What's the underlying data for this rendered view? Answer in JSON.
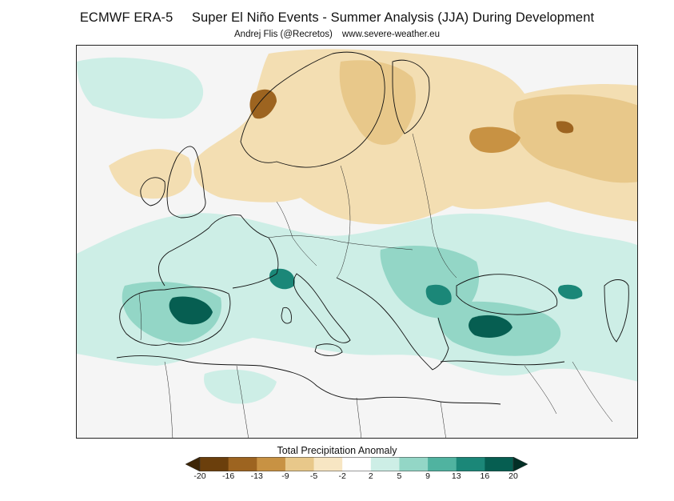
{
  "header": {
    "title": "ECMWF ERA-5     Super El Niño Events - Summer Analysis (JJA) During Development",
    "author": "Andrej Flis (@Recretos)",
    "website": "www.severe-weather.eu"
  },
  "map": {
    "region": "Europe, Mediterranean and North Africa",
    "variable": "Total Precipitation Anomaly"
  },
  "colorbar": {
    "label": "Total Precipitation Anomaly",
    "ticks": [
      "-20",
      "-16",
      "-13",
      "-9",
      "-5",
      "-2",
      "2",
      "5",
      "9",
      "13",
      "16",
      "20"
    ],
    "colors": [
      "#3d2507",
      "#6b3f0c",
      "#9d6420",
      "#c89243",
      "#e8c88a",
      "#f7e6c3",
      "#ffffff",
      "#cdeee6",
      "#93d6c6",
      "#50b3a0",
      "#1b8778",
      "#065e51",
      "#022f26"
    ]
  },
  "colors": {
    "dry_light": "#f3deb2",
    "dry_mid": "#e8c88a",
    "dry_strong": "#c89243",
    "dry_peak": "#9d6420",
    "wet_light": "#cdeee6",
    "wet_mid": "#93d6c6",
    "wet_strong": "#50b3a0",
    "wet_peak": "#1b8778",
    "wet_max": "#065e51"
  }
}
